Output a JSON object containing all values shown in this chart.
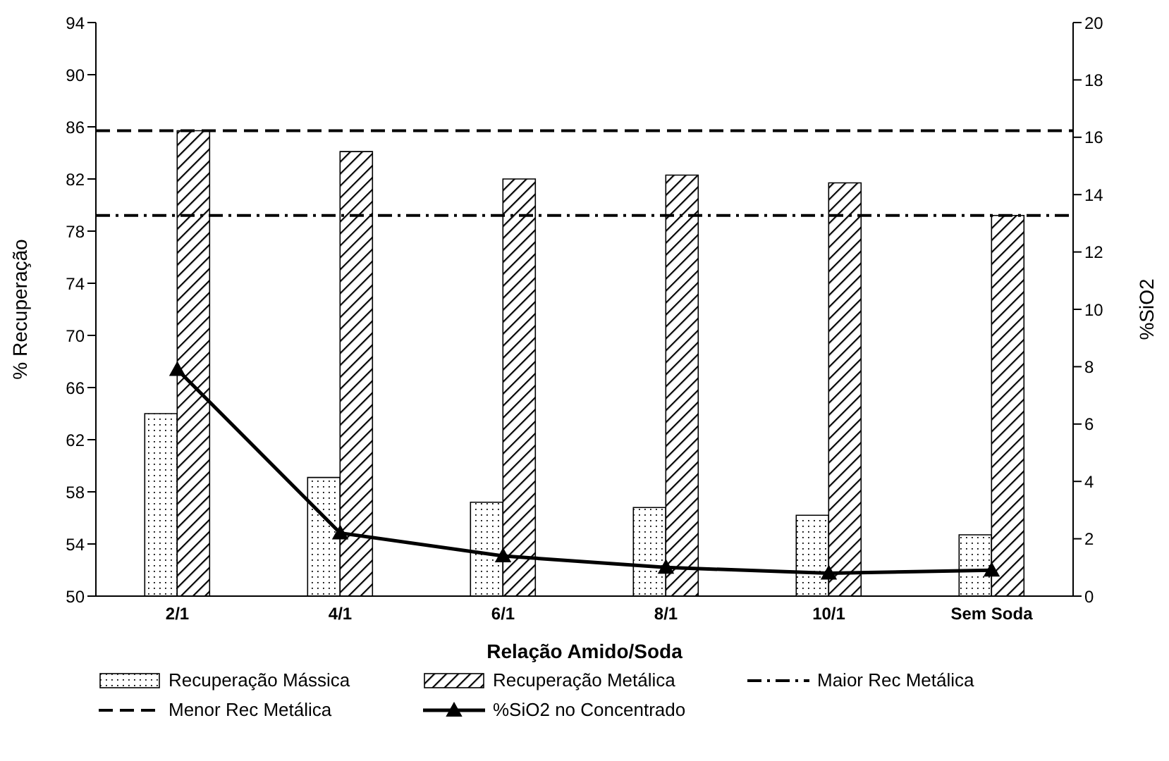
{
  "chart_data": {
    "type": "bar",
    "xlabel": "Relação Amido/Soda",
    "ylabel": "% Recuperação",
    "y2label": "%SiO2",
    "categories": [
      "2/1",
      "4/1",
      "6/1",
      "8/1",
      "10/1",
      "Sem Soda"
    ],
    "series": [
      {
        "name": "Recuperação Mássica",
        "color": "#000000",
        "values": [
          64.0,
          59.1,
          57.2,
          56.8,
          56.2,
          54.7
        ]
      },
      {
        "name": "Recuperação Metálica",
        "color": "#000000",
        "values": [
          85.7,
          84.1,
          82.0,
          82.3,
          81.7,
          79.2
        ]
      },
      {
        "name": "%SiO2 no Concentrado",
        "type": "line",
        "axis": "y2",
        "color": "#000000",
        "marker": "triangle",
        "values": [
          7.9,
          2.2,
          1.4,
          1.0,
          0.8,
          0.9
        ]
      }
    ],
    "ref_lines": [
      {
        "axis": "y",
        "value": 79.2,
        "label": "Maior Rec Metálica",
        "color": "#000000",
        "line_style": "dashdot"
      },
      {
        "axis": "y",
        "value": 85.7,
        "label": "Menor Rec Metálica",
        "color": "#000000",
        "line_style": "dashed"
      }
    ],
    "ylim": [
      50,
      94
    ],
    "yticks": [
      50,
      54,
      58,
      62,
      66,
      70,
      74,
      78,
      82,
      86,
      90,
      94
    ],
    "y2lim": [
      0,
      20
    ],
    "y2ticks": [
      0,
      2,
      4,
      6,
      8,
      10,
      12,
      14,
      16,
      18,
      20
    ],
    "grid": false,
    "legend": "bottom"
  }
}
